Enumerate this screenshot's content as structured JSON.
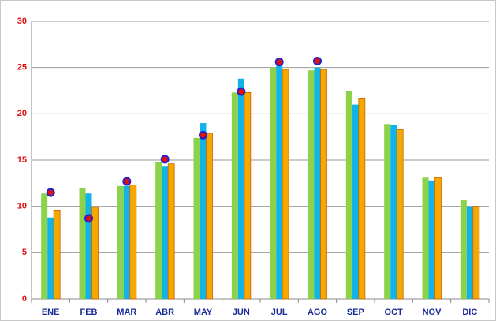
{
  "chart_data": {
    "type": "bar",
    "categories": [
      "ENE",
      "FEB",
      "MAR",
      "ABR",
      "MAY",
      "JUN",
      "JUL",
      "AGO",
      "SEP",
      "OCT",
      "NOV",
      "DIC"
    ],
    "series": [
      {
        "type": "bar",
        "color": "#8cd24a",
        "values": [
          11.4,
          12.0,
          12.2,
          14.8,
          17.4,
          22.3,
          25.0,
          24.7,
          22.5,
          18.9,
          13.1,
          10.7
        ]
      },
      {
        "type": "bar",
        "color": "#12b4e8",
        "values": [
          8.8,
          11.4,
          12.2,
          14.3,
          19.0,
          23.8,
          25.2,
          25.0,
          21.0,
          18.8,
          12.8,
          10.0
        ]
      },
      {
        "type": "bar",
        "color": "#f6a800",
        "edgecolor": "#c86400",
        "values": [
          9.6,
          9.9,
          12.3,
          14.6,
          17.9,
          22.3,
          24.8,
          24.8,
          21.7,
          18.3,
          13.1,
          10.0
        ]
      },
      {
        "type": "dot",
        "color": "#e01010",
        "edgecolor": "#2020d0",
        "values": [
          11.5,
          8.7,
          12.7,
          15.1,
          17.7,
          22.4,
          25.6,
          25.7,
          null,
          null,
          null,
          null
        ]
      }
    ],
    "ylim": [
      0,
      30
    ],
    "yticks": [
      0,
      5,
      10,
      15,
      20,
      25,
      30
    ],
    "grid": true
  }
}
